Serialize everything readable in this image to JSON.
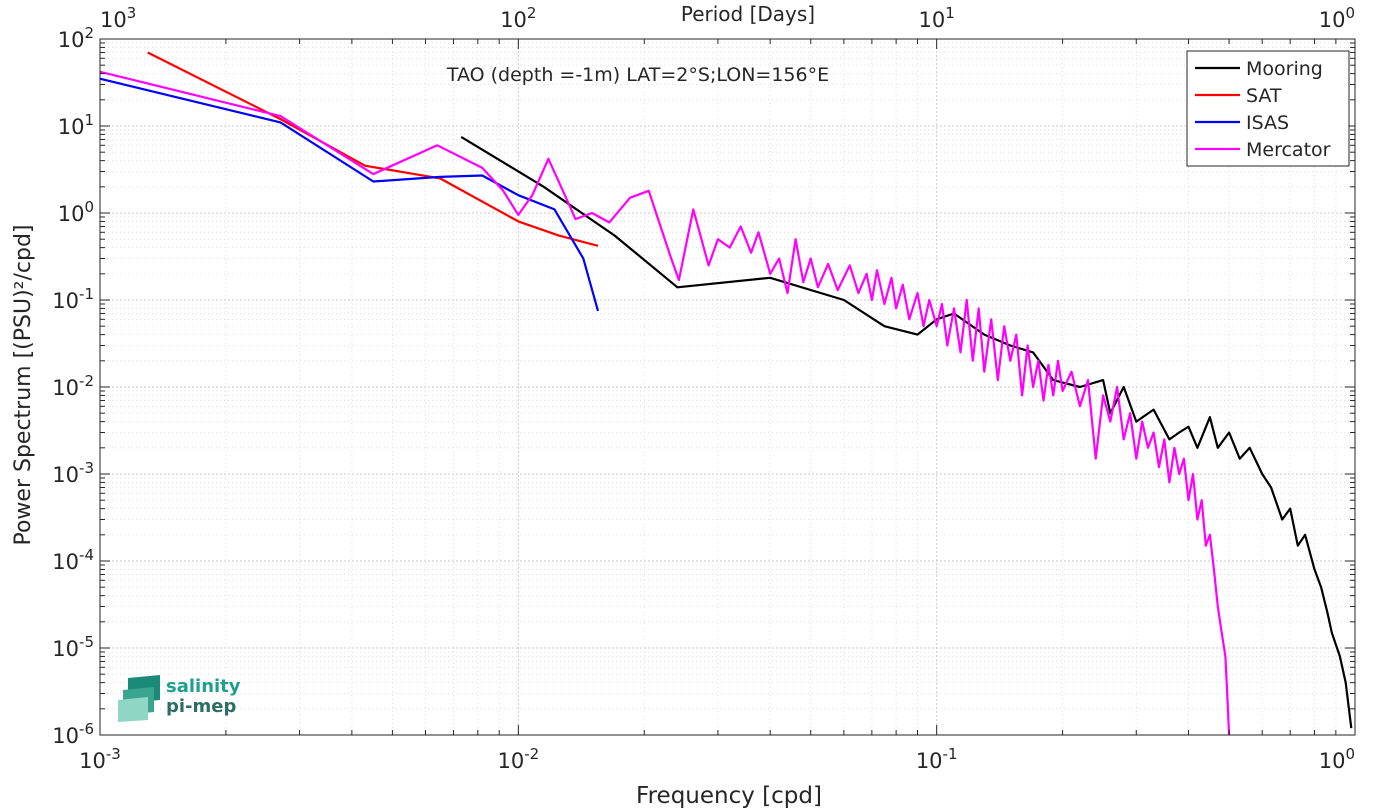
{
  "chart_data": {
    "type": "line",
    "title": "TAO (depth =-1m) LAT=2°S;LON=156°E",
    "xlabel": "Frequency [cpd]",
    "ylabel": "Power Spectrum [(PSU)²/cpd]",
    "top_xlabel": "Period [Days]",
    "x_scale": "log",
    "y_scale": "log",
    "xlim": [
      0.001,
      1
    ],
    "ylim": [
      1e-06,
      100
    ],
    "x_ticks": [
      {
        "base": "10",
        "exp": "-3"
      },
      {
        "base": "10",
        "exp": "-2"
      },
      {
        "base": "10",
        "exp": "-1"
      },
      {
        "base": "10",
        "exp": "0"
      }
    ],
    "top_ticks": [
      {
        "base": "10",
        "exp": "3"
      },
      {
        "base": "10",
        "exp": "2"
      },
      {
        "base": "10",
        "exp": "1"
      },
      {
        "base": "10",
        "exp": "0"
      }
    ],
    "y_ticks": [
      {
        "base": "10",
        "exp": "2"
      },
      {
        "base": "10",
        "exp": "1"
      },
      {
        "base": "10",
        "exp": "0"
      },
      {
        "base": "10",
        "exp": "-1"
      },
      {
        "base": "10",
        "exp": "-2"
      },
      {
        "base": "10",
        "exp": "-3"
      },
      {
        "base": "10",
        "exp": "-4"
      },
      {
        "base": "10",
        "exp": "-5"
      },
      {
        "base": "10",
        "exp": "-6"
      }
    ],
    "grid": true,
    "legend_position": "top-right",
    "series": [
      {
        "name": "Mooring",
        "color": "#000000",
        "points": [
          [
            0.0073,
            7.5
          ],
          [
            0.0115,
            2.0
          ],
          [
            0.017,
            0.55
          ],
          [
            0.024,
            0.14
          ],
          [
            0.04,
            0.18
          ],
          [
            0.06,
            0.1
          ],
          [
            0.075,
            0.05
          ],
          [
            0.09,
            0.04
          ],
          [
            0.1,
            0.06
          ],
          [
            0.11,
            0.07
          ],
          [
            0.13,
            0.04
          ],
          [
            0.15,
            0.03
          ],
          [
            0.17,
            0.025
          ],
          [
            0.19,
            0.012
          ],
          [
            0.22,
            0.01
          ],
          [
            0.25,
            0.012
          ],
          [
            0.26,
            0.005
          ],
          [
            0.28,
            0.01
          ],
          [
            0.3,
            0.004
          ],
          [
            0.33,
            0.0055
          ],
          [
            0.36,
            0.0025
          ],
          [
            0.38,
            0.003
          ],
          [
            0.4,
            0.0035
          ],
          [
            0.42,
            0.002
          ],
          [
            0.45,
            0.0045
          ],
          [
            0.47,
            0.002
          ],
          [
            0.5,
            0.003
          ],
          [
            0.53,
            0.0015
          ],
          [
            0.56,
            0.002
          ],
          [
            0.6,
            0.001
          ],
          [
            0.63,
            0.0007
          ],
          [
            0.67,
            0.0003
          ],
          [
            0.7,
            0.0004
          ],
          [
            0.73,
            0.00015
          ],
          [
            0.76,
            0.0002
          ],
          [
            0.8,
            8e-05
          ],
          [
            0.83,
            5e-05
          ],
          [
            0.86,
            2.5e-05
          ],
          [
            0.88,
            1.5e-05
          ],
          [
            0.92,
            8e-06
          ],
          [
            0.95,
            4e-06
          ],
          [
            0.98,
            1.2e-06
          ]
        ]
      },
      {
        "name": "SAT",
        "color": "#ff0000",
        "points": [
          [
            0.0013,
            70
          ],
          [
            0.0027,
            12
          ],
          [
            0.0043,
            3.5
          ],
          [
            0.0065,
            2.5
          ],
          [
            0.01,
            0.8
          ],
          [
            0.0125,
            0.55
          ],
          [
            0.0155,
            0.42
          ]
        ]
      },
      {
        "name": "ISAS",
        "color": "#0000ff",
        "points": [
          [
            0.001,
            35
          ],
          [
            0.0027,
            11
          ],
          [
            0.0045,
            2.3
          ],
          [
            0.0065,
            2.6
          ],
          [
            0.0082,
            2.7
          ],
          [
            0.01,
            1.6
          ],
          [
            0.0122,
            1.1
          ],
          [
            0.0143,
            0.3
          ],
          [
            0.0155,
            0.075
          ]
        ]
      },
      {
        "name": "Mercator",
        "color": "#ff00ff",
        "points": [
          [
            0.001,
            42
          ],
          [
            0.0027,
            13
          ],
          [
            0.0045,
            2.8
          ],
          [
            0.0064,
            6
          ],
          [
            0.0082,
            3.3
          ],
          [
            0.0092,
            1.8
          ],
          [
            0.01,
            0.95
          ],
          [
            0.0108,
            1.6
          ],
          [
            0.0118,
            4.2
          ],
          [
            0.013,
            1.5
          ],
          [
            0.0137,
            0.85
          ],
          [
            0.015,
            1.0
          ],
          [
            0.0165,
            0.78
          ],
          [
            0.0185,
            1.5
          ],
          [
            0.0205,
            1.8
          ],
          [
            0.0215,
            0.9
          ],
          [
            0.0232,
            0.3
          ],
          [
            0.0242,
            0.17
          ],
          [
            0.0262,
            1.1
          ],
          [
            0.0285,
            0.25
          ],
          [
            0.03,
            0.5
          ],
          [
            0.032,
            0.4
          ],
          [
            0.034,
            0.7
          ],
          [
            0.036,
            0.35
          ],
          [
            0.0375,
            0.6
          ],
          [
            0.04,
            0.2
          ],
          [
            0.042,
            0.3
          ],
          [
            0.044,
            0.12
          ],
          [
            0.046,
            0.5
          ],
          [
            0.048,
            0.16
          ],
          [
            0.05,
            0.3
          ],
          [
            0.052,
            0.14
          ],
          [
            0.055,
            0.26
          ],
          [
            0.058,
            0.13
          ],
          [
            0.062,
            0.25
          ],
          [
            0.065,
            0.12
          ],
          [
            0.068,
            0.2
          ],
          [
            0.07,
            0.1
          ],
          [
            0.072,
            0.22
          ],
          [
            0.075,
            0.09
          ],
          [
            0.078,
            0.18
          ],
          [
            0.08,
            0.08
          ],
          [
            0.083,
            0.15
          ],
          [
            0.086,
            0.06
          ],
          [
            0.09,
            0.12
          ],
          [
            0.093,
            0.05
          ],
          [
            0.096,
            0.1
          ],
          [
            0.1,
            0.05
          ],
          [
            0.103,
            0.09
          ],
          [
            0.106,
            0.03
          ],
          [
            0.11,
            0.08
          ],
          [
            0.114,
            0.025
          ],
          [
            0.118,
            0.1
          ],
          [
            0.122,
            0.02
          ],
          [
            0.126,
            0.08
          ],
          [
            0.13,
            0.015
          ],
          [
            0.135,
            0.06
          ],
          [
            0.14,
            0.012
          ],
          [
            0.145,
            0.05
          ],
          [
            0.15,
            0.02
          ],
          [
            0.155,
            0.04
          ],
          [
            0.16,
            0.008
          ],
          [
            0.165,
            0.03
          ],
          [
            0.17,
            0.01
          ],
          [
            0.175,
            0.02
          ],
          [
            0.18,
            0.007
          ],
          [
            0.185,
            0.018
          ],
          [
            0.19,
            0.008
          ],
          [
            0.195,
            0.02
          ],
          [
            0.2,
            0.009
          ],
          [
            0.21,
            0.015
          ],
          [
            0.22,
            0.006
          ],
          [
            0.23,
            0.012
          ],
          [
            0.24,
            0.0015
          ],
          [
            0.25,
            0.008
          ],
          [
            0.26,
            0.004
          ],
          [
            0.27,
            0.01
          ],
          [
            0.28,
            0.0025
          ],
          [
            0.29,
            0.005
          ],
          [
            0.3,
            0.0015
          ],
          [
            0.31,
            0.004
          ],
          [
            0.32,
            0.002
          ],
          [
            0.33,
            0.003
          ],
          [
            0.34,
            0.0012
          ],
          [
            0.35,
            0.0025
          ],
          [
            0.36,
            0.0008
          ],
          [
            0.37,
            0.002
          ],
          [
            0.38,
            0.001
          ],
          [
            0.39,
            0.0015
          ],
          [
            0.4,
            0.0005
          ],
          [
            0.41,
            0.001
          ],
          [
            0.42,
            0.0003
          ],
          [
            0.43,
            0.0005
          ],
          [
            0.44,
            0.00015
          ],
          [
            0.45,
            0.0002
          ],
          [
            0.46,
            8e-05
          ],
          [
            0.47,
            3e-05
          ],
          [
            0.48,
            1.5e-05
          ],
          [
            0.49,
            8e-06
          ],
          [
            0.495,
            3e-06
          ],
          [
            0.5,
            1e-06
          ]
        ]
      }
    ]
  },
  "logo": {
    "line1": "salinity",
    "line2": "pi-mep"
  }
}
